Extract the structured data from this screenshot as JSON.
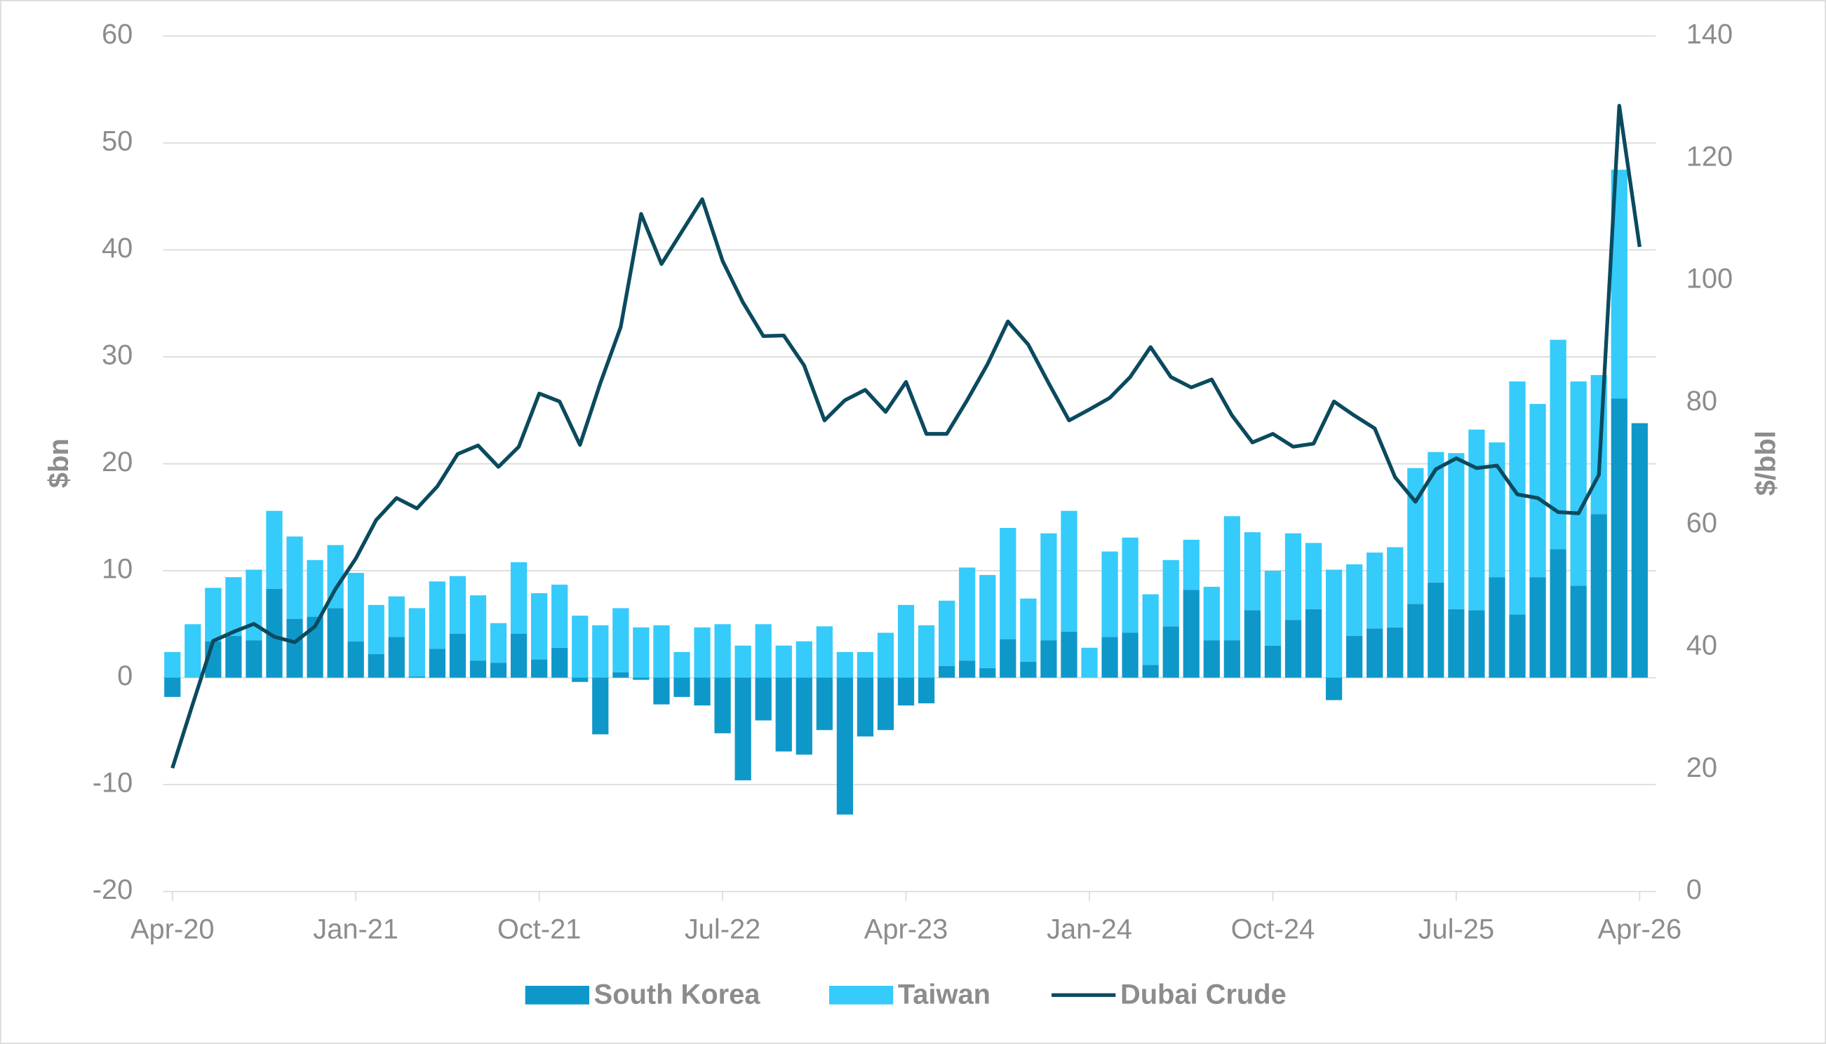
{
  "chart_data": {
    "type": "bar",
    "stacked": true,
    "y_label": "$bn",
    "y2_label": "$/bbl",
    "categories": [
      "Apr-20",
      null,
      null,
      null,
      null,
      null,
      null,
      null,
      null,
      "Jan-21",
      null,
      null,
      null,
      null,
      null,
      null,
      null,
      null,
      "Oct-21",
      null,
      null,
      null,
      null,
      null,
      null,
      null,
      null,
      "Jul-22",
      null,
      null,
      null,
      null,
      null,
      null,
      null,
      null,
      "Apr-23",
      null,
      null,
      null,
      null,
      null,
      null,
      null,
      null,
      "Jan-24",
      null,
      null,
      null,
      null,
      null,
      null,
      null,
      null,
      "Oct-24",
      null,
      null,
      null,
      null,
      null,
      null,
      null,
      null,
      "Jul-25",
      null,
      null,
      null,
      null,
      null,
      null,
      null,
      null,
      "Apr-26"
    ],
    "series": [
      {
        "name": "South Korea",
        "type": "bar",
        "color": "#0e98c9",
        "values": [
          -1.8,
          0,
          3.4,
          3.9,
          3.5,
          8.3,
          5.5,
          5.7,
          6.5,
          3.4,
          2.2,
          3.8,
          0.1,
          2.7,
          4.1,
          1.6,
          1.4,
          4.1,
          1.7,
          2.8,
          -0.4,
          -5.3,
          0.5,
          -0.2,
          -2.5,
          -1.8,
          -2.6,
          -5.2,
          -9.6,
          -4.0,
          -6.9,
          -7.2,
          -4.9,
          -12.8,
          -5.5,
          -4.9,
          -2.6,
          -2.4,
          1.1,
          1.6,
          0.9,
          3.6,
          1.5,
          3.5,
          4.3,
          0,
          3.8,
          4.2,
          1.2,
          4.8,
          8.2,
          3.5,
          3.5,
          6.3,
          3.0,
          5.4,
          6.4,
          -2.1,
          3.9,
          4.6,
          4.7,
          6.9,
          8.9,
          6.4,
          6.3,
          9.4,
          5.9,
          9.4,
          12.0,
          8.6,
          15.3,
          26.1,
          23.8
        ]
      },
      {
        "name": "Taiwan",
        "type": "bar",
        "color": "#35cbfa",
        "values": [
          2.4,
          5.0,
          5.0,
          5.5,
          6.6,
          7.3,
          7.7,
          5.3,
          5.9,
          6.4,
          4.6,
          3.8,
          6.4,
          6.3,
          5.4,
          6.1,
          3.7,
          6.7,
          6.2,
          5.9,
          5.8,
          4.9,
          6.0,
          4.7,
          4.9,
          2.4,
          4.7,
          5.0,
          3.0,
          5.0,
          3.0,
          3.4,
          4.8,
          2.4,
          2.4,
          4.2,
          6.8,
          4.9,
          6.1,
          8.7,
          8.7,
          10.4,
          5.9,
          10.0,
          11.3,
          2.8,
          8.0,
          8.9,
          6.6,
          6.2,
          4.7,
          5.0,
          11.6,
          7.3,
          7.0,
          8.1,
          6.2,
          10.1,
          6.7,
          7.1,
          7.5,
          12.7,
          12.2,
          14.6,
          16.9,
          12.6,
          21.8,
          16.2,
          19.6,
          19.1,
          13.0,
          21.4,
          null
        ]
      },
      {
        "name": "Dubai Crude",
        "type": "line",
        "axis": "y2",
        "color": "#0b4a5e",
        "values": [
          20.2,
          30.7,
          41.0,
          42.5,
          43.8,
          41.7,
          40.8,
          43.4,
          49.5,
          54.5,
          60.8,
          64.4,
          62.7,
          66.3,
          71.6,
          73.0,
          69.5,
          72.8,
          81.5,
          80.2,
          73.1,
          83.2,
          92.4,
          110.9,
          102.7,
          108.0,
          113.3,
          103.2,
          96.4,
          90.9,
          91.0,
          86.1,
          77.1,
          80.4,
          82.1,
          78.5,
          83.4,
          74.9,
          74.9,
          80.4,
          86.3,
          93.3,
          89.5,
          83.2,
          77.1,
          78.9,
          80.8,
          84.2,
          89.1,
          84.2,
          82.5,
          83.8,
          77.9,
          73.5,
          74.9,
          72.8,
          73.3,
          80.2,
          77.9,
          75.8,
          67.8,
          63.8,
          69.1,
          70.9,
          69.3,
          69.7,
          65.0,
          64.4,
          62.1,
          61.9,
          68.2,
          128.6,
          105.5
        ]
      }
    ],
    "ylim": [
      -20,
      60
    ],
    "yticks": [
      -20,
      -10,
      0,
      10,
      20,
      30,
      40,
      50,
      60
    ],
    "y2lim": [
      0,
      140
    ],
    "y2ticks": [
      0,
      20,
      40,
      60,
      80,
      100,
      120,
      140
    ],
    "grid": true,
    "legend": "bottom"
  }
}
